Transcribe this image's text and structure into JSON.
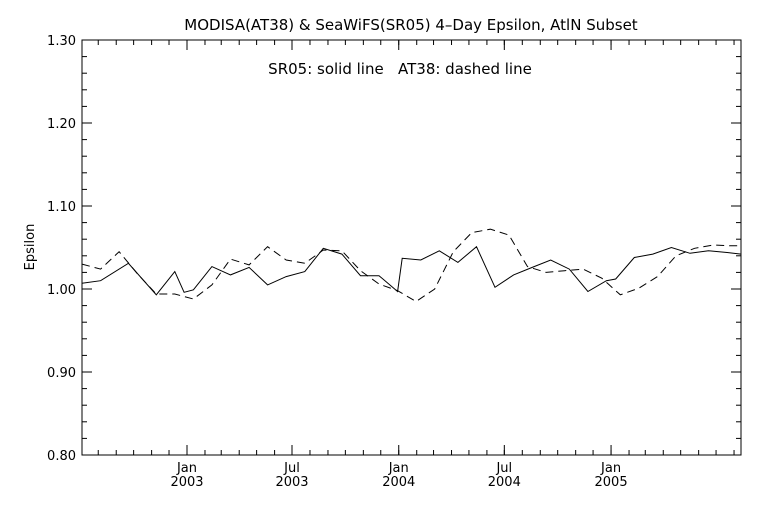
{
  "chart_data": {
    "type": "line",
    "title": "MODISA(AT38) & SeaWiFS(SR05) 4–Day Epsilon, AtlN Subset",
    "annotation": "SR05: solid line   AT38: dashed line",
    "xlabel": "",
    "ylabel": "Epsilon",
    "xlim": [
      "2002-07-04",
      "2005-08-13"
    ],
    "ylim": [
      0.8,
      1.3
    ],
    "y_ticks": [
      "0.80",
      "0.90",
      "1.00",
      "1.10",
      "1.20",
      "1.30"
    ],
    "x_ticks": [
      {
        "date": "2003-01-01",
        "month": "Jan",
        "year": "2003"
      },
      {
        "date": "2003-07-01",
        "month": "Jul",
        "year": "2003"
      },
      {
        "date": "2004-01-01",
        "month": "Jan",
        "year": "2004"
      },
      {
        "date": "2004-07-01",
        "month": "Jul",
        "year": "2004"
      },
      {
        "date": "2005-01-01",
        "month": "Jan",
        "year": "2005"
      }
    ],
    "grid": false,
    "series": [
      {
        "name": "SR05",
        "line_style": "solid",
        "color": "#000000",
        "x": [
          "2002-07-04",
          "2002-08-05",
          "2002-09-22",
          "2002-11-09",
          "2002-12-11",
          "2002-12-27",
          "2003-01-12",
          "2003-02-13",
          "2003-03-17",
          "2003-04-18",
          "2003-05-20",
          "2003-06-21",
          "2003-07-23",
          "2003-08-24",
          "2003-09-25",
          "2003-10-27",
          "2003-11-28",
          "2003-12-30",
          "2004-01-07",
          "2004-02-08",
          "2004-03-11",
          "2004-04-12",
          "2004-05-14",
          "2004-06-15",
          "2004-07-17",
          "2004-08-18",
          "2004-09-19",
          "2004-10-21",
          "2004-11-22",
          "2004-12-24",
          "2005-01-09",
          "2005-02-10",
          "2005-03-14",
          "2005-04-15",
          "2005-05-17",
          "2005-06-18",
          "2005-07-20",
          "2005-08-13"
        ],
        "y": [
          1.007,
          1.01,
          1.031,
          0.993,
          1.021,
          0.996,
          0.999,
          1.027,
          1.017,
          1.026,
          1.005,
          1.015,
          1.021,
          1.049,
          1.042,
          1.016,
          1.016,
          0.997,
          1.037,
          1.035,
          1.046,
          1.032,
          1.051,
          1.002,
          1.017,
          1.026,
          1.035,
          1.024,
          0.997,
          1.01,
          1.012,
          1.038,
          1.042,
          1.05,
          1.043,
          1.046,
          1.044,
          1.042
        ]
      },
      {
        "name": "AT38",
        "line_style": "dashed",
        "color": "#000000",
        "x": [
          "2002-07-04",
          "2002-08-05",
          "2002-09-06",
          "2002-10-08",
          "2002-11-09",
          "2002-12-11",
          "2003-01-12",
          "2003-02-13",
          "2003-03-17",
          "2003-04-18",
          "2003-05-20",
          "2003-06-21",
          "2003-07-23",
          "2003-08-24",
          "2003-09-25",
          "2003-10-27",
          "2003-11-28",
          "2003-12-30",
          "2004-01-31",
          "2004-03-03",
          "2004-04-04",
          "2004-05-06",
          "2004-06-07",
          "2004-07-09",
          "2004-08-10",
          "2004-09-11",
          "2004-10-13",
          "2004-11-14",
          "2004-12-16",
          "2005-01-17",
          "2005-02-18",
          "2005-03-22",
          "2005-04-23",
          "2005-05-25",
          "2005-06-26",
          "2005-07-28",
          "2005-08-13"
        ],
        "y": [
          1.03,
          1.024,
          1.045,
          1.018,
          0.994,
          0.994,
          0.988,
          1.005,
          1.036,
          1.029,
          1.051,
          1.035,
          1.031,
          1.047,
          1.046,
          1.022,
          1.006,
          0.998,
          0.985,
          1.0,
          1.045,
          1.068,
          1.072,
          1.065,
          1.027,
          1.02,
          1.022,
          1.024,
          1.013,
          0.993,
          1.001,
          1.015,
          1.04,
          1.049,
          1.053,
          1.052,
          1.052
        ]
      }
    ]
  }
}
